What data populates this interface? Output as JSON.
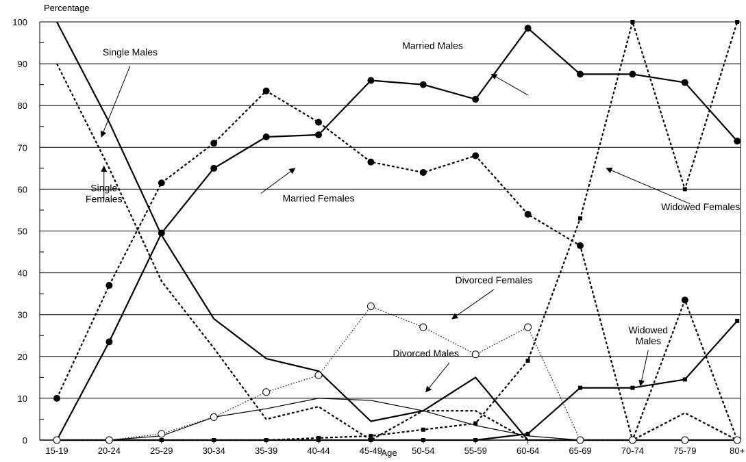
{
  "chart_data": {
    "type": "line",
    "ylabel": "Percentage",
    "xlabel": "Age",
    "ylim": [
      0,
      100
    ],
    "yticks": [
      0,
      10,
      20,
      30,
      40,
      50,
      60,
      70,
      80,
      90,
      100
    ],
    "grid": true,
    "categories": [
      "15-19",
      "20-24",
      "25-29",
      "30-34",
      "35-39",
      "40-44",
      "45-49",
      "50-54",
      "55-59",
      "60-64",
      "65-69",
      "70-74",
      "75-79",
      "80+"
    ],
    "series": [
      {
        "name": "Single Males",
        "style": "solid",
        "width": 2.2,
        "marker": "none",
        "values": [
          100,
          76,
          49,
          29,
          19.5,
          16.5,
          4.5,
          7,
          15,
          0,
          0,
          0,
          0,
          0
        ]
      },
      {
        "name": "Married Males",
        "style": "solid",
        "width": 2.2,
        "marker": "filled-circle",
        "values": [
          0,
          23.5,
          49.5,
          65,
          72.5,
          73,
          86,
          85,
          81.5,
          98.5,
          87.5,
          87.5,
          85.5,
          71.5
        ]
      },
      {
        "name": "Widowed Males",
        "style": "solid",
        "width": 2.2,
        "marker": "square",
        "values": [
          0,
          0,
          0,
          0,
          0,
          0,
          0,
          0,
          0,
          1.5,
          12.5,
          12.5,
          14.5,
          28.5
        ]
      },
      {
        "name": "Divorced Males",
        "style": "solid",
        "width": 1.2,
        "marker": "none",
        "values": [
          0,
          0,
          1,
          5.5,
          7.5,
          10,
          9.5,
          7,
          3.5,
          1,
          0,
          0,
          0,
          0
        ]
      },
      {
        "name": "Single Females",
        "style": "dashed",
        "width": 2.2,
        "marker": "none",
        "values": [
          90,
          65,
          38,
          22,
          5,
          8,
          0,
          7,
          7,
          0,
          0,
          0,
          6.5,
          0
        ]
      },
      {
        "name": "Married Females",
        "style": "dashed",
        "width": 2.2,
        "marker": "filled-circle",
        "values": [
          10,
          37,
          61.5,
          71,
          83.5,
          76,
          66.5,
          64,
          68,
          54,
          46.5,
          0,
          33.5,
          0
        ]
      },
      {
        "name": "Widowed Females",
        "style": "dashed",
        "width": 2.2,
        "marker": "square",
        "values": [
          0,
          0,
          0,
          0,
          0,
          0.5,
          1,
          2.5,
          4,
          19,
          53,
          100,
          60,
          100
        ]
      },
      {
        "name": "Divorced Females",
        "style": "dotted",
        "width": 1.2,
        "marker": "open-circle",
        "values": [
          0,
          0,
          1.5,
          5.5,
          11.5,
          15.5,
          32,
          27,
          20.5,
          27,
          0,
          0,
          0,
          0
        ]
      }
    ],
    "annotations": [
      {
        "lines": [
          "Married Males"
        ],
        "pointer": {
          "from": [
            9,
            82.5
          ],
          "to": [
            8.3,
            87.5
          ]
        },
        "label": [
          6.6,
          93.5
        ],
        "anchor": "start"
      },
      {
        "lines": [
          "Single Males"
        ],
        "pointer": {
          "from": [
            1.4,
            89.5
          ],
          "to": [
            0.85,
            72.5
          ]
        },
        "label": [
          1.4,
          92
        ],
        "anchor": "middle"
      },
      {
        "lines": [
          "Single",
          "Females"
        ],
        "pointer": {
          "from": [
            0.9,
            57.5
          ],
          "to": [
            0.9,
            65.5
          ]
        },
        "label": [
          0.9,
          59.5
        ],
        "anchor": "middle"
      },
      {
        "lines": [
          "Married Females"
        ],
        "pointer": {
          "from": [
            3.9,
            59
          ],
          "to": [
            4.55,
            65
          ]
        },
        "label": [
          5,
          57
        ],
        "anchor": "middle"
      },
      {
        "lines": [
          "Widowed Females"
        ],
        "pointer": {
          "from": [
            12.1,
            56.5
          ],
          "to": [
            10.5,
            65
          ]
        },
        "label": [
          12.3,
          55
        ],
        "anchor": "middle"
      },
      {
        "lines": [
          "Divorced Females"
        ],
        "pointer": {
          "from": [
            8.35,
            36
          ],
          "to": [
            7.55,
            29
          ]
        },
        "label": [
          8.35,
          37.5
        ],
        "anchor": "middle"
      },
      {
        "lines": [
          "Divorced Males"
        ],
        "pointer": {
          "from": [
            7.5,
            18.5
          ],
          "to": [
            7.05,
            11.5
          ]
        },
        "label": [
          7.05,
          20
        ],
        "anchor": "middle"
      },
      {
        "lines": [
          "Widowed",
          "Males"
        ],
        "pointer": {
          "from": [
            11.3,
            21.5
          ],
          "to": [
            11.15,
            13
          ]
        },
        "label": [
          11.3,
          25.5
        ],
        "anchor": "middle"
      }
    ]
  }
}
